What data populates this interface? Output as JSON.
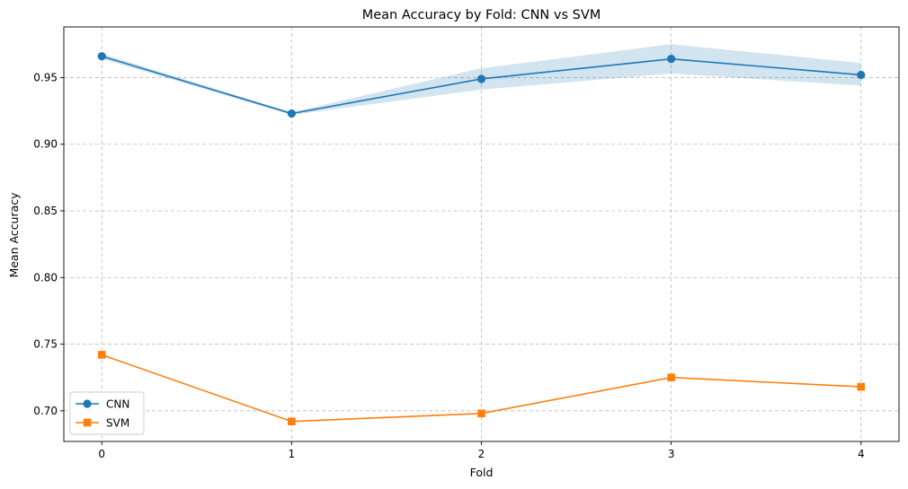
{
  "chart_data": {
    "type": "line",
    "title": "Mean Accuracy by Fold: CNN vs SVM",
    "xlabel": "Fold",
    "ylabel": "Mean Accuracy",
    "x": [
      0,
      1,
      2,
      3,
      4
    ],
    "xlim": [
      -0.2,
      4.2
    ],
    "ylim": [
      0.677,
      0.988
    ],
    "xticks": [
      "0",
      "1",
      "2",
      "3",
      "4"
    ],
    "yticks": [
      "0.70",
      "0.75",
      "0.80",
      "0.85",
      "0.90",
      "0.95"
    ],
    "grid": true,
    "legend_position": "lower-left",
    "series": [
      {
        "name": "CNN",
        "marker": "circle",
        "color": "#1f77b4",
        "values": [
          0.966,
          0.923,
          0.949,
          0.964,
          0.952
        ],
        "band_lower": [
          0.964,
          0.922,
          0.941,
          0.953,
          0.944
        ],
        "band_upper": [
          0.968,
          0.924,
          0.957,
          0.975,
          0.961
        ],
        "band_color": "#1f77b4"
      },
      {
        "name": "SVM",
        "marker": "square",
        "color": "#ff7f0e",
        "values": [
          0.742,
          0.692,
          0.698,
          0.725,
          0.718
        ]
      }
    ]
  }
}
